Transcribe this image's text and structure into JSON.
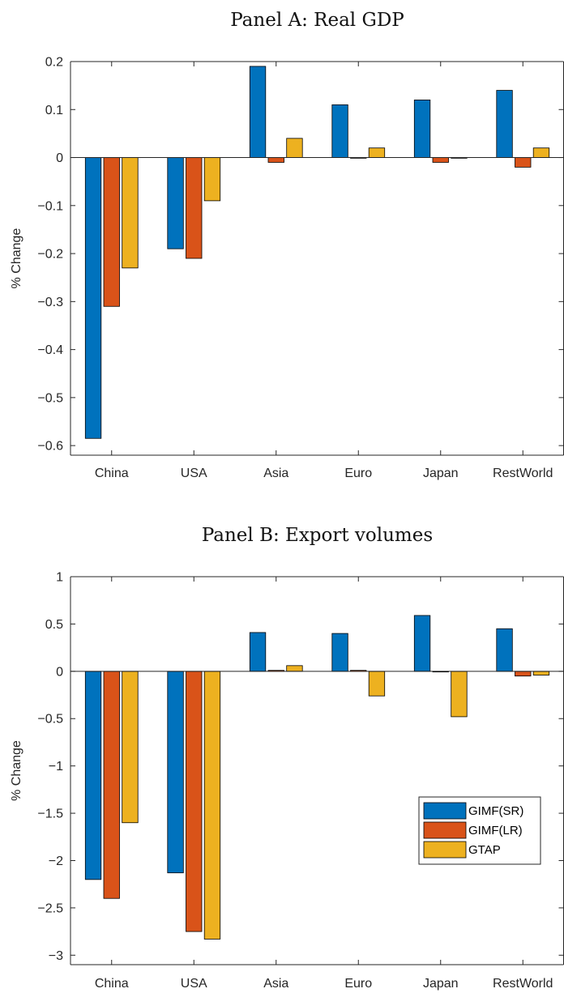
{
  "chart_data": [
    {
      "type": "bar",
      "title": "Panel A: Real GDP",
      "xlabel": "",
      "ylabel": "% Change",
      "categories": [
        "China",
        "USA",
        "Asia",
        "Euro",
        "Japan",
        "RestWorld"
      ],
      "ylim": [
        -0.62,
        0.2
      ],
      "yticks": [
        0.2,
        0.1,
        0,
        -0.1,
        -0.2,
        -0.3,
        -0.4,
        -0.5,
        -0.6
      ],
      "ytick_labels": [
        "0.2",
        "0.1",
        "0",
        "−0.1",
        "−0.2",
        "−0.3",
        "−0.4",
        "−0.5",
        "−0.6"
      ],
      "grid": false,
      "legend": null,
      "series": [
        {
          "name": "GIMF(SR)",
          "color": "#0072BD",
          "values": [
            -0.585,
            -0.19,
            0.19,
            0.11,
            0.12,
            0.14
          ]
        },
        {
          "name": "GIMF(LR)",
          "color": "#D95319",
          "values": [
            -0.31,
            -0.21,
            -0.01,
            0.0,
            -0.01,
            -0.02
          ]
        },
        {
          "name": "GTAP",
          "color": "#EDB120",
          "values": [
            -0.23,
            -0.09,
            0.04,
            0.02,
            0.0,
            0.02
          ]
        }
      ]
    },
    {
      "type": "bar",
      "title": "Panel B: Export volumes",
      "xlabel": "",
      "ylabel": "% Change",
      "categories": [
        "China",
        "USA",
        "Asia",
        "Euro",
        "Japan",
        "RestWorld"
      ],
      "ylim": [
        -3.1,
        1.0
      ],
      "yticks": [
        1,
        0.5,
        0,
        -0.5,
        -1,
        -1.5,
        -2,
        -2.5,
        -3
      ],
      "ytick_labels": [
        "1",
        "0.5",
        "0",
        "−0.5",
        "−1",
        "−1.5",
        "−2",
        "−2.5",
        "−3"
      ],
      "grid": false,
      "legend": "bottom-right",
      "series": [
        {
          "name": "GIMF(SR)",
          "color": "#0072BD",
          "values": [
            -2.2,
            -2.13,
            0.41,
            0.4,
            0.59,
            0.45
          ]
        },
        {
          "name": "GIMF(LR)",
          "color": "#D95319",
          "values": [
            -2.4,
            -2.75,
            0.01,
            0.01,
            0.0,
            -0.05
          ]
        },
        {
          "name": "GTAP",
          "color": "#EDB120",
          "values": [
            -1.6,
            -2.83,
            0.06,
            -0.26,
            -0.48,
            -0.04
          ]
        }
      ]
    }
  ]
}
